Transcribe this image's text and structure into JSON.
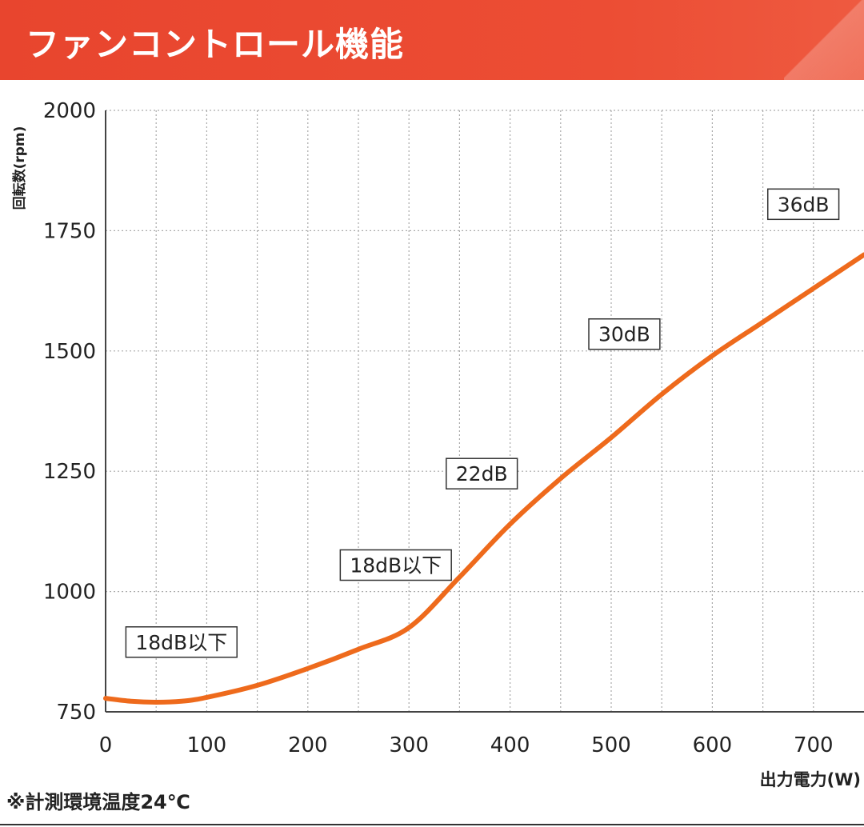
{
  "header": {
    "title": "ファンコントロール機能"
  },
  "footnote": "※計測環境温度24℃",
  "colors": {
    "header": "#e8452e",
    "line": "#ee6a1c",
    "grid": "#aaaaaa",
    "axis": "#444444"
  },
  "chart_data": {
    "type": "line",
    "title": "",
    "xlabel": "出力電力(W)",
    "ylabel": "回転数(rpm)",
    "xlim": [
      0,
      750
    ],
    "ylim": [
      750,
      2000
    ],
    "xticks": [
      0,
      100,
      200,
      300,
      400,
      500,
      600,
      700
    ],
    "yticks": [
      750,
      1000,
      1250,
      1500,
      1750,
      2000
    ],
    "grid": true,
    "series": [
      {
        "name": "",
        "x": [
          0,
          25,
          50,
          75,
          100,
          150,
          200,
          250,
          300,
          350,
          400,
          450,
          500,
          550,
          600,
          650,
          700,
          750
        ],
        "y": [
          778,
          772,
          770,
          772,
          780,
          805,
          840,
          880,
          925,
          1030,
          1140,
          1235,
          1320,
          1410,
          1490,
          1560,
          1630,
          1700
        ]
      }
    ],
    "annotations": [
      {
        "text": "18dB以下",
        "x": 75,
        "y": 895
      },
      {
        "text": "18dB以下",
        "x": 287,
        "y": 1055
      },
      {
        "text": "22dB",
        "x": 372,
        "y": 1245
      },
      {
        "text": "30dB",
        "x": 513,
        "y": 1535
      },
      {
        "text": "36dB",
        "x": 690,
        "y": 1805
      }
    ]
  }
}
